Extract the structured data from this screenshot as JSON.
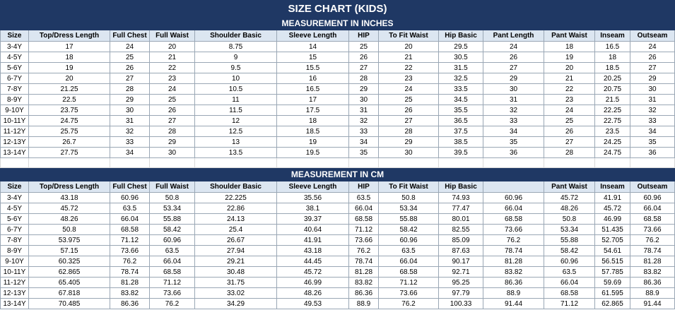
{
  "title": "SIZE CHART (KIDS)",
  "sections": [
    {
      "title": "MEASUREMENT IN INCHES",
      "header": [
        "Size",
        "Top/Dress Length",
        "Full Chest",
        "Full Waist",
        "Shoulder Basic",
        "Sleeve Length",
        "HIP",
        "To Fit Waist",
        "Hip Basic",
        "Pant Length",
        "Pant Waist",
        "Inseam",
        "Outseam"
      ],
      "rows": [
        [
          "3-4Y",
          17,
          24,
          20,
          8.75,
          14,
          25,
          20,
          29.5,
          24,
          18,
          16.5,
          24
        ],
        [
          "4-5Y",
          18,
          25,
          21,
          9,
          15,
          26,
          21,
          30.5,
          26,
          19,
          18,
          26
        ],
        [
          "5-6Y",
          19,
          26,
          22,
          9.5,
          15.5,
          27,
          22,
          31.5,
          27,
          20,
          18.5,
          27
        ],
        [
          "6-7Y",
          20,
          27,
          23,
          10,
          16,
          28,
          23,
          32.5,
          29,
          21,
          20.25,
          29
        ],
        [
          "7-8Y",
          21.25,
          28,
          24,
          10.5,
          16.5,
          29,
          24,
          33.5,
          30,
          22,
          20.75,
          30
        ],
        [
          "8-9Y",
          22.5,
          29,
          25,
          11,
          17,
          30,
          25,
          34.5,
          31,
          23,
          21.5,
          31
        ],
        [
          "9-10Y",
          23.75,
          30,
          26,
          11.5,
          17.5,
          31,
          26,
          35.5,
          32,
          24,
          22.25,
          32
        ],
        [
          "10-11Y",
          24.75,
          31,
          27,
          12,
          18,
          32,
          27,
          36.5,
          33,
          25,
          22.75,
          33
        ],
        [
          "11-12Y",
          25.75,
          32,
          28,
          12.5,
          18.5,
          33,
          28,
          37.5,
          34,
          26,
          23.5,
          34
        ],
        [
          "12-13Y",
          26.7,
          33,
          29,
          13,
          19,
          34,
          29,
          38.5,
          35,
          27,
          24.25,
          35
        ],
        [
          "13-14Y",
          27.75,
          34,
          30,
          13.5,
          19.5,
          35,
          30,
          39.5,
          36,
          28,
          24.75,
          36
        ]
      ]
    },
    {
      "title": "MEASUREMENT IN CM",
      "header": [
        "Size",
        "Top/Dress Length",
        "Full Chest",
        "Full Waist",
        "Shoulder Basic",
        "Sleeve Length",
        "HIP",
        "To Fit Waist",
        "Hip Basic",
        null,
        "Pant Waist",
        "Inseam",
        "Outseam"
      ],
      "rows": [
        [
          "3-4Y",
          43.18,
          60.96,
          50.8,
          22.225,
          35.56,
          63.5,
          50.8,
          74.93,
          60.96,
          45.72,
          41.91,
          60.96
        ],
        [
          "4-5Y",
          45.72,
          63.5,
          53.34,
          22.86,
          38.1,
          66.04,
          53.34,
          77.47,
          66.04,
          48.26,
          45.72,
          66.04
        ],
        [
          "5-6Y",
          48.26,
          66.04,
          55.88,
          24.13,
          39.37,
          68.58,
          55.88,
          80.01,
          68.58,
          50.8,
          46.99,
          68.58
        ],
        [
          "6-7Y",
          50.8,
          68.58,
          58.42,
          25.4,
          40.64,
          71.12,
          58.42,
          82.55,
          73.66,
          53.34,
          51.435,
          73.66
        ],
        [
          "7-8Y",
          53.975,
          71.12,
          60.96,
          26.67,
          41.91,
          73.66,
          60.96,
          85.09,
          76.2,
          55.88,
          52.705,
          76.2
        ],
        [
          "8-9Y",
          57.15,
          73.66,
          63.5,
          27.94,
          43.18,
          76.2,
          63.5,
          87.63,
          78.74,
          58.42,
          54.61,
          78.74
        ],
        [
          "9-10Y",
          60.325,
          76.2,
          66.04,
          29.21,
          44.45,
          78.74,
          66.04,
          90.17,
          81.28,
          60.96,
          56.515,
          81.28
        ],
        [
          "10-11Y",
          62.865,
          78.74,
          68.58,
          30.48,
          45.72,
          81.28,
          68.58,
          92.71,
          83.82,
          63.5,
          57.785,
          83.82
        ],
        [
          "11-12Y",
          65.405,
          81.28,
          71.12,
          31.75,
          46.99,
          83.82,
          71.12,
          95.25,
          86.36,
          66.04,
          59.69,
          86.36
        ],
        [
          "12-13Y",
          67.818,
          83.82,
          73.66,
          33.02,
          48.26,
          86.36,
          73.66,
          97.79,
          88.9,
          68.58,
          61.595,
          88.9
        ],
        [
          "13-14Y",
          70.485,
          86.36,
          76.2,
          34.29,
          49.53,
          88.9,
          76.2,
          100.33,
          91.44,
          71.12,
          62.865,
          91.44
        ]
      ]
    }
  ]
}
